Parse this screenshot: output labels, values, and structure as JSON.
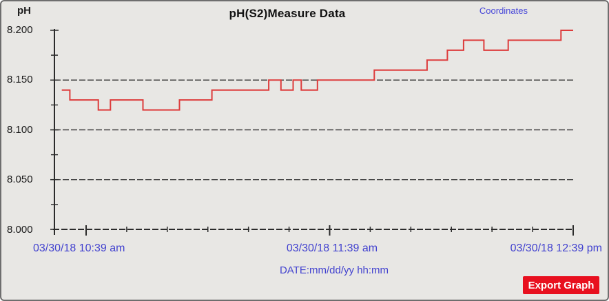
{
  "window": {
    "background": "#e8e7e4",
    "border_color": "#6e6e6e"
  },
  "header": {
    "title": "pH(S2)Measure Data",
    "coordinates_link": "Coordinates"
  },
  "chart_data": {
    "type": "line",
    "line_style": "step-after",
    "title": "pH(S2)Measure Data",
    "ylabel": "pH",
    "xlabel": "DATE:mm/dd/yy hh:mm",
    "ylim": [
      8.0,
      8.2
    ],
    "y_major_step": 0.05,
    "y_minor_step": 0.025,
    "y_tick_labels": [
      "8.200",
      "8.150",
      "8.100",
      "8.050",
      "8.000"
    ],
    "x_tick_labels": [
      "03/30/18 10:39 am",
      "03/30/18 11:39 am",
      "03/30/18 12:39 pm"
    ],
    "x_minor_ticks_per_interval": 5,
    "grid": "horizontal dashed lines at 8.150, 8.100, 8.050 and baseline 8.000; no vertical gridlines",
    "legend": "none",
    "series": [
      {
        "name": "pH(S2)",
        "color": "#dd3b3b",
        "points": [
          {
            "t": "10:33",
            "v": 8.14
          },
          {
            "t": "10:35",
            "v": 8.13
          },
          {
            "t": "10:42",
            "v": 8.12
          },
          {
            "t": "10:45",
            "v": 8.13
          },
          {
            "t": "10:53",
            "v": 8.12
          },
          {
            "t": "11:02",
            "v": 8.13
          },
          {
            "t": "11:10",
            "v": 8.14
          },
          {
            "t": "11:24",
            "v": 8.15
          },
          {
            "t": "11:27",
            "v": 8.14
          },
          {
            "t": "11:30",
            "v": 8.15
          },
          {
            "t": "11:32",
            "v": 8.14
          },
          {
            "t": "11:36",
            "v": 8.15
          },
          {
            "t": "11:50",
            "v": 8.16
          },
          {
            "t": "12:03",
            "v": 8.17
          },
          {
            "t": "12:08",
            "v": 8.18
          },
          {
            "t": "12:12",
            "v": 8.19
          },
          {
            "t": "12:17",
            "v": 8.18
          },
          {
            "t": "12:23",
            "v": 8.19
          },
          {
            "t": "12:36",
            "v": 8.2
          },
          {
            "t": "12:39",
            "v": 8.2
          }
        ]
      }
    ]
  },
  "footer": {
    "export_button": "Export Graph"
  },
  "colors": {
    "axis": "#2b2b2b",
    "gridline": "#3f3f3f",
    "line_red": "#dd3b3b",
    "label_blue": "#4242cf",
    "button_red": "#e8101f"
  }
}
